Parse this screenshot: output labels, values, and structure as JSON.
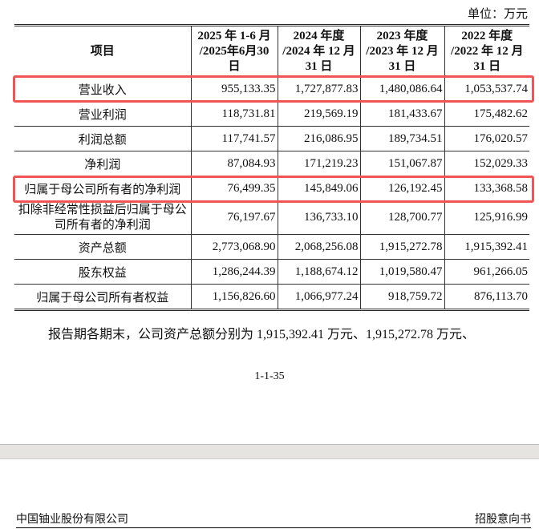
{
  "unit_label": "单位：万元",
  "table": {
    "headers": [
      [
        "项目"
      ],
      [
        "2025 年 1-6 月",
        "/2025年6月30",
        "日"
      ],
      [
        "2024 年度",
        "/2024 年 12 月",
        "31 日"
      ],
      [
        "2023 年度",
        "/2023 年 12 月",
        "31 日"
      ],
      [
        "2022 年度",
        "/2022 年 12 月",
        "31 日"
      ]
    ],
    "rows": [
      {
        "label": "营业收入",
        "values": [
          "955,133.35",
          "1,727,877.83",
          "1,480,086.64",
          "1,053,537.74"
        ],
        "highlighted": true
      },
      {
        "label": "营业利润",
        "values": [
          "118,731.81",
          "219,569.19",
          "181,433.67",
          "175,482.62"
        ]
      },
      {
        "label": "利润总额",
        "values": [
          "117,741.57",
          "216,086.95",
          "189,734.51",
          "176,020.57"
        ]
      },
      {
        "label": "净利润",
        "values": [
          "87,084.93",
          "171,219.23",
          "151,067.87",
          "152,029.33"
        ]
      },
      {
        "label": "归属于母公司所有者的净利润",
        "values": [
          "76,499.35",
          "145,849.06",
          "126,192.45",
          "133,368.58"
        ],
        "highlighted": true
      },
      {
        "label": "扣除非经常性损益后归属于母公司所有者的净利润",
        "values": [
          "76,197.67",
          "136,733.10",
          "128,700.77",
          "125,916.99"
        ]
      },
      {
        "label": "资产总额",
        "values": [
          "2,773,068.90",
          "2,068,256.08",
          "1,915,272.78",
          "1,915,392.41"
        ]
      },
      {
        "label": "股东权益",
        "values": [
          "1,286,244.39",
          "1,188,674.12",
          "1,019,580.47",
          "961,266.05"
        ]
      },
      {
        "label": "归属于母公司所有者权益",
        "values": [
          "1,156,826.60",
          "1,066,977.24",
          "918,759.72",
          "876,113.70"
        ]
      }
    ]
  },
  "paragraph": "报告期各期末，公司资产总额分别为 1,915,392.41 万元、1,915,272.78 万元、",
  "page_number": "1-1-35",
  "footer": {
    "left": "中国铀业股份有限公司",
    "right": "招股意向书"
  },
  "highlight_color": "#f05454"
}
